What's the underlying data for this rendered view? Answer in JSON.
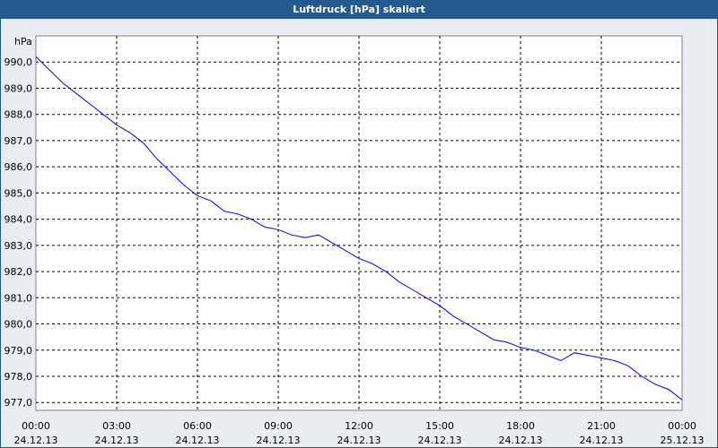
{
  "window": {
    "title": "Luftdruck [hPa] skaliert"
  },
  "colors": {
    "titlebar": "#245a8f",
    "plot_background": "#ffffff",
    "frame_background": "#e9edf2",
    "line": "#0000ff",
    "grid": "#000000"
  },
  "chart_data": {
    "type": "line",
    "title": "Luftdruck [hPa] skaliert",
    "xlabel": "",
    "ylabel": "hPa",
    "ylim": [
      976.7,
      991.0
    ],
    "y_ticks": [
      "977,0",
      "978,0",
      "979,0",
      "980,0",
      "981,0",
      "982,0",
      "983,0",
      "984,0",
      "985,0",
      "986,0",
      "987,0",
      "988,0",
      "989,0",
      "990,0"
    ],
    "x_ticks": [
      {
        "time": "00:00",
        "date": "24.12.13"
      },
      {
        "time": "03:00",
        "date": "24.12.13"
      },
      {
        "time": "06:00",
        "date": "24.12.13"
      },
      {
        "time": "09:00",
        "date": "24.12.13"
      },
      {
        "time": "12:00",
        "date": "24.12.13"
      },
      {
        "time": "15:00",
        "date": "24.12.13"
      },
      {
        "time": "18:00",
        "date": "24.12.13"
      },
      {
        "time": "21:00",
        "date": "24.12.13"
      },
      {
        "time": "00:00",
        "date": "25.12.13"
      }
    ],
    "grid": true,
    "series": [
      {
        "color": "#0000ff",
        "x": [
          "00:00",
          "00:30",
          "01:00",
          "01:30",
          "02:00",
          "02:30",
          "03:00",
          "03:30",
          "04:00",
          "04:30",
          "05:00",
          "05:30",
          "06:00",
          "06:30",
          "07:00",
          "07:30",
          "08:00",
          "08:30",
          "09:00",
          "09:30",
          "10:00",
          "10:30",
          "11:00",
          "11:30",
          "12:00",
          "12:30",
          "13:00",
          "13:30",
          "14:00",
          "14:30",
          "15:00",
          "15:30",
          "16:00",
          "16:30",
          "17:00",
          "17:30",
          "18:00",
          "18:30",
          "19:00",
          "19:30",
          "20:00",
          "20:30",
          "21:00",
          "21:30",
          "22:00",
          "22:30",
          "23:00",
          "23:30",
          "24:00"
        ],
        "values": [
          990.2,
          989.7,
          989.2,
          988.8,
          988.4,
          988.0,
          987.6,
          987.3,
          986.9,
          986.3,
          985.8,
          985.3,
          984.9,
          984.7,
          984.3,
          984.2,
          984.0,
          983.7,
          983.6,
          983.4,
          983.3,
          983.4,
          983.1,
          982.8,
          982.5,
          982.3,
          982.0,
          981.6,
          981.3,
          981.0,
          980.7,
          980.3,
          980.0,
          979.7,
          979.4,
          979.3,
          979.1,
          979.0,
          978.8,
          978.6,
          978.9,
          978.8,
          978.7,
          978.6,
          978.4,
          978.0,
          977.7,
          977.5,
          977.1
        ]
      }
    ]
  }
}
